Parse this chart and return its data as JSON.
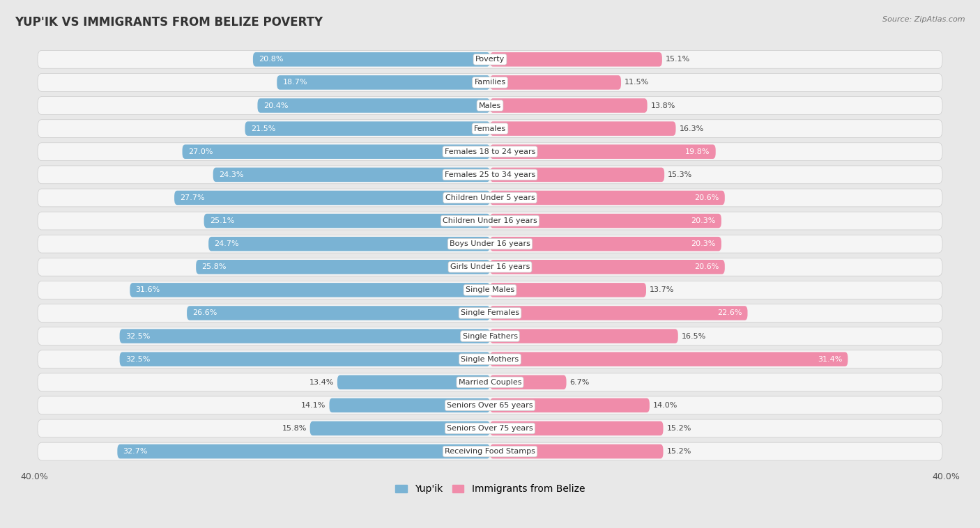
{
  "title": "YUP'IK VS IMMIGRANTS FROM BELIZE POVERTY",
  "source": "Source: ZipAtlas.com",
  "categories": [
    "Poverty",
    "Families",
    "Males",
    "Females",
    "Females 18 to 24 years",
    "Females 25 to 34 years",
    "Children Under 5 years",
    "Children Under 16 years",
    "Boys Under 16 years",
    "Girls Under 16 years",
    "Single Males",
    "Single Females",
    "Single Fathers",
    "Single Mothers",
    "Married Couples",
    "Seniors Over 65 years",
    "Seniors Over 75 years",
    "Receiving Food Stamps"
  ],
  "yupik_values": [
    20.8,
    18.7,
    20.4,
    21.5,
    27.0,
    24.3,
    27.7,
    25.1,
    24.7,
    25.8,
    31.6,
    26.6,
    32.5,
    32.5,
    13.4,
    14.1,
    15.8,
    32.7
  ],
  "belize_values": [
    15.1,
    11.5,
    13.8,
    16.3,
    19.8,
    15.3,
    20.6,
    20.3,
    20.3,
    20.6,
    13.7,
    22.6,
    16.5,
    31.4,
    6.7,
    14.0,
    15.2,
    15.2
  ],
  "yupik_color": "#7ab3d4",
  "belize_color": "#f08caa",
  "yupik_label": "Yup'ik",
  "belize_label": "Immigrants from Belize",
  "xlim": 40.0,
  "background_color": "#e8e8e8",
  "row_bg_color": "#f5f5f5",
  "row_border_color": "#cccccc",
  "title_fontsize": 12,
  "axis_fontsize": 9,
  "label_fontsize": 8,
  "value_fontsize": 8,
  "inside_label_threshold": 18.0
}
